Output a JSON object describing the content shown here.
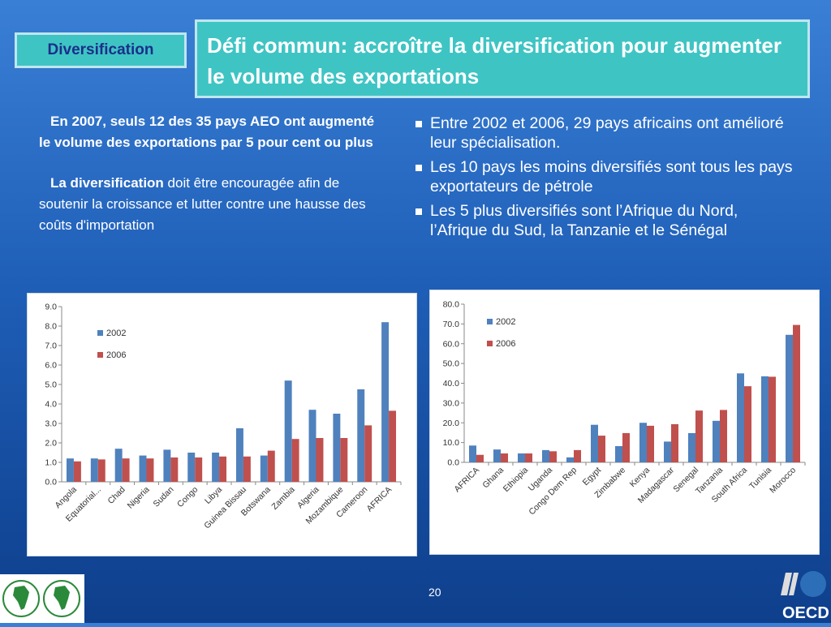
{
  "slide": {
    "badge": "Diversification",
    "title": "Défi commun: accroître la diversification pour augmenter le volume des exportations",
    "left_para1": "En 2007, seuls 12 des 35 pays AEO ont augmenté le volume des exportations par 5 pour cent ou plus",
    "left_para2_bold": "La diversification",
    "left_para2_rest": " doit être encouragée afin de soutenir la croissance et lutter contre une hausse des coûts d'importation",
    "bullets": [
      "Entre 2002 et 2006, 29 pays africains ont amélioré leur spécialisation.",
      "Les 10 pays les moins diversifiés sont tous les pays exportateurs de pétrole",
      "Les 5 plus diversifiés sont l’Afrique du Nord, l’Afrique du Sud, la Tanzanie et le Sénégal"
    ],
    "page_number": "20",
    "footer_logo": "OECD"
  },
  "colors": {
    "series_2002": "#4f81bd",
    "series_2006": "#c0504d",
    "title_bg": "#3fc4c4",
    "badge_text": "#1a2f8a"
  },
  "chart_data": [
    {
      "type": "bar",
      "categories": [
        "Angola",
        "Equatorial...",
        "Chad",
        "Nigeria",
        "Sudan",
        "Congo",
        "Libya",
        "Guinea Bissau",
        "Botswana",
        "Zambia",
        "Algeria",
        "Mozambique",
        "Cameroon",
        "AFRICA"
      ],
      "series": [
        {
          "name": "2002",
          "values": [
            1.2,
            1.2,
            1.7,
            1.35,
            1.65,
            1.5,
            1.5,
            2.75,
            1.35,
            5.2,
            3.7,
            3.5,
            4.75,
            8.2
          ]
        },
        {
          "name": "2006",
          "values": [
            1.05,
            1.15,
            1.2,
            1.2,
            1.25,
            1.25,
            1.3,
            1.3,
            1.6,
            2.2,
            2.25,
            2.25,
            2.9,
            3.65
          ]
        }
      ],
      "yticks": [
        "0.0",
        "1.0",
        "2.0",
        "3.0",
        "4.0",
        "5.0",
        "6.0",
        "7.0",
        "8.0",
        "9.0"
      ],
      "ylim": [
        0,
        9
      ],
      "legend": "top-left",
      "grid": false
    },
    {
      "type": "bar",
      "categories": [
        "AFRICA",
        "Ghana",
        "Ethiopia",
        "Uganda",
        "Congo Dem Rep",
        "Egypt",
        "Zimbabwe",
        "Kenya",
        "Madagascar",
        "Senegal",
        "Tanzania",
        "South Africa",
        "Tunisia",
        "Morocco"
      ],
      "series": [
        {
          "name": "2002",
          "values": [
            8.5,
            6.5,
            4.5,
            6.2,
            2.5,
            19.0,
            8.2,
            20.0,
            10.5,
            14.8,
            21.0,
            45.0,
            43.5,
            64.5
          ]
        },
        {
          "name": "2006",
          "values": [
            3.8,
            4.5,
            4.5,
            5.6,
            6.2,
            13.5,
            14.8,
            18.5,
            19.3,
            26.2,
            26.5,
            38.5,
            43.3,
            69.5
          ]
        }
      ],
      "yticks": [
        "0.0",
        "10.0",
        "20.0",
        "30.0",
        "40.0",
        "50.0",
        "60.0",
        "70.0",
        "80.0"
      ],
      "ylim": [
        0,
        80
      ],
      "legend": "top-left",
      "grid": false
    }
  ]
}
